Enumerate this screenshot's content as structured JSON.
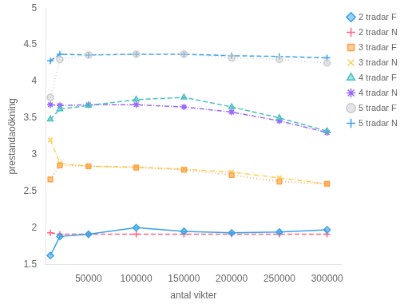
{
  "chart_data": {
    "type": "line",
    "xlabel": "antal vikter",
    "ylabel": "prestandaoökning",
    "x": [
      10000,
      20000,
      50000,
      100000,
      150000,
      200000,
      250000,
      300000
    ],
    "series": [
      {
        "name": "2 tradar F",
        "marker": "diamond",
        "line_style": "solid",
        "values": [
          1.62,
          1.88,
          1.91,
          2.0,
          1.95,
          1.93,
          1.94,
          1.97
        ]
      },
      {
        "name": "2 tradar N",
        "marker": "plus",
        "line_style": "dashed",
        "values": [
          1.93,
          1.91,
          1.91,
          1.91,
          1.91,
          1.91,
          1.91,
          1.91
        ]
      },
      {
        "name": "3 tradar F",
        "marker": "square",
        "line_style": "dotted",
        "values": [
          2.66,
          2.85,
          2.84,
          2.82,
          2.79,
          2.72,
          2.63,
          2.6
        ]
      },
      {
        "name": "3 tradar N",
        "marker": "cross",
        "line_style": "dashdot",
        "values": [
          3.2,
          2.88,
          2.84,
          2.83,
          2.8,
          2.76,
          2.68,
          2.6
        ]
      },
      {
        "name": "4 tradar F",
        "marker": "triangle",
        "line_style": "dashed",
        "values": [
          3.48,
          3.62,
          3.67,
          3.75,
          3.78,
          3.65,
          3.5,
          3.32
        ]
      },
      {
        "name": "4 tradar N",
        "marker": "star",
        "line_style": "dashdot",
        "values": [
          3.68,
          3.67,
          3.68,
          3.68,
          3.65,
          3.58,
          3.46,
          3.3
        ]
      },
      {
        "name": "5 tradar F",
        "marker": "circle",
        "line_style": "dotted",
        "values": [
          3.78,
          4.3,
          4.36,
          4.37,
          4.37,
          4.32,
          4.3,
          4.25
        ]
      },
      {
        "name": "5 tradar N",
        "marker": "plus",
        "line_style": "dashed",
        "values": [
          4.28,
          4.37,
          4.36,
          4.37,
          4.37,
          4.35,
          4.34,
          4.32
        ]
      }
    ],
    "xlim": [
      5000,
      315000
    ],
    "xticks": [
      50000,
      100000,
      150000,
      200000,
      250000,
      300000
    ],
    "ylim": [
      1.5,
      5.0
    ],
    "yticks": [
      1.5,
      2.0,
      2.5,
      3.0,
      3.5,
      4.0,
      4.5,
      5.0
    ],
    "grid": false,
    "legend": "upper right"
  }
}
